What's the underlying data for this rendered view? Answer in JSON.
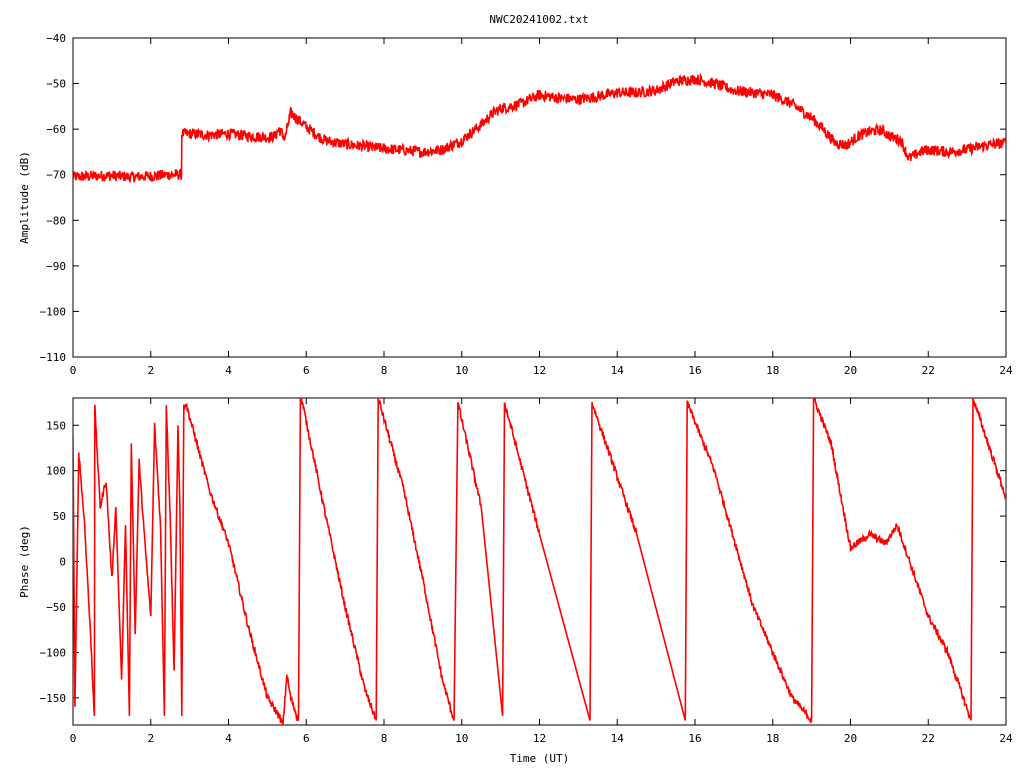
{
  "title": "NWC20241002.txt",
  "colors": {
    "series": "#ff0000",
    "axis": "#000000",
    "background": "#ffffff"
  },
  "chart_data": [
    {
      "type": "line",
      "ylabel": "Amplitude (dB)",
      "xlabel": "",
      "xlim": [
        0,
        24
      ],
      "ylim": [
        -110,
        -40
      ],
      "xticks": [
        0,
        2,
        4,
        6,
        8,
        10,
        12,
        14,
        16,
        18,
        20,
        22,
        24
      ],
      "yticks": [
        -110,
        -100,
        -90,
        -80,
        -70,
        -60,
        -50,
        -40
      ],
      "grid": false,
      "noise": 1.2,
      "series": [
        {
          "x": [
            0,
            0.5,
            1,
            1.5,
            2,
            2.5,
            2.79,
            2.8,
            3,
            3.5,
            4,
            4.5,
            5,
            5.2,
            5.3,
            5.45,
            5.6,
            5.8,
            6,
            6.3,
            6.5,
            7,
            7.5,
            8,
            8.5,
            9,
            9.5,
            10,
            10.5,
            10.8,
            11,
            11.5,
            12,
            12.5,
            13,
            13.5,
            14,
            14.5,
            15,
            15.5,
            16,
            16.5,
            17,
            17.5,
            18,
            18.5,
            19,
            19.3,
            19.6,
            19.9,
            20.2,
            20.5,
            20.8,
            21,
            21.3,
            21.5,
            21.8,
            22,
            22.5,
            23,
            23.5,
            24
          ],
          "values": [
            -70.5,
            -70.3,
            -70.2,
            -70.5,
            -70.3,
            -70,
            -70,
            -61,
            -61,
            -61.3,
            -61,
            -61.5,
            -61.8,
            -61.5,
            -60,
            -62,
            -56.5,
            -58,
            -59.5,
            -61.5,
            -62.5,
            -63.3,
            -63.8,
            -64.3,
            -64.6,
            -65,
            -64.5,
            -62.5,
            -59,
            -56.5,
            -55.5,
            -54.5,
            -52.5,
            -53.2,
            -53.5,
            -52.8,
            -52,
            -52,
            -51.5,
            -49.5,
            -49,
            -50,
            -51.5,
            -52,
            -52.5,
            -54.5,
            -57.5,
            -60,
            -63,
            -63.5,
            -61.5,
            -60.5,
            -60.2,
            -61.5,
            -62.5,
            -66.5,
            -65,
            -64.5,
            -65,
            -64.5,
            -63.5,
            -63
          ]
        }
      ]
    },
    {
      "type": "line",
      "ylabel": "Phase (deg)",
      "xlabel": "Time (UT)",
      "xlim": [
        0,
        24
      ],
      "ylim": [
        -180,
        180
      ],
      "xticks": [
        0,
        2,
        4,
        6,
        8,
        10,
        12,
        14,
        16,
        18,
        20,
        22,
        24
      ],
      "yticks": [
        -150,
        -100,
        -50,
        0,
        50,
        100,
        150
      ],
      "grid": false,
      "noise": 4,
      "series": [
        {
          "x": [
            0,
            0.05,
            0.15,
            0.3,
            0.45,
            0.55,
            0.56,
            0.7,
            0.85,
            1,
            1.1,
            1.25,
            1.35,
            1.45,
            1.5,
            1.6,
            1.7,
            1.85,
            2,
            2.1,
            2.25,
            2.35,
            2.4,
            2.5,
            2.6,
            2.7,
            2.75,
            2.8,
            2.85,
            2.9,
            3.5,
            4,
            4.5,
            5,
            5.3,
            5.4,
            5.5,
            5.6,
            5.8,
            5.85,
            5.9,
            6.5,
            7,
            7.5,
            7.8,
            7.85,
            8.5,
            9,
            9.5,
            9.8,
            9.9,
            10.5,
            11.05,
            11.1,
            12,
            13.3,
            13.35,
            14.5,
            15.75,
            15.8,
            16.5,
            17.5,
            18.5,
            19,
            19.05,
            19.5,
            20,
            20.5,
            20.9,
            21.2,
            21.6,
            22,
            22.5,
            23.1,
            23.15,
            24
          ],
          "values": [
            140,
            -160,
            120,
            40,
            -80,
            -170,
            170,
            60,
            90,
            -20,
            60,
            -130,
            40,
            -170,
            130,
            -80,
            110,
            20,
            -60,
            150,
            40,
            -170,
            170,
            50,
            -120,
            150,
            60,
            -170,
            170,
            175,
            80,
            20,
            -70,
            -150,
            -170,
            -180,
            -125,
            -150,
            -175,
            180,
            175,
            50,
            -50,
            -140,
            -175,
            180,
            80,
            -20,
            -130,
            -175,
            175,
            60,
            -170,
            175,
            30,
            -175,
            175,
            30,
            -175,
            175,
            100,
            -50,
            -150,
            -175,
            180,
            130,
            15,
            30,
            20,
            40,
            -10,
            -60,
            -100,
            -175,
            180,
            70
          ]
        }
      ]
    }
  ]
}
